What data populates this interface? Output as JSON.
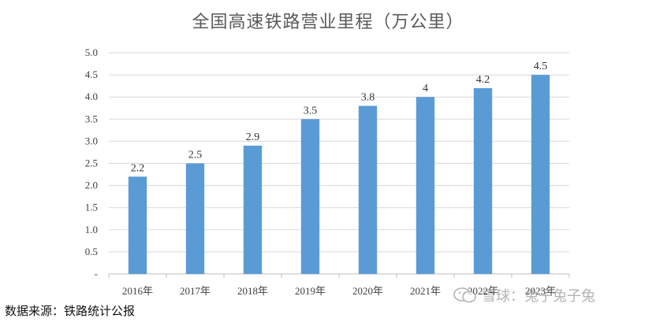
{
  "colors": {
    "bar": "#5b9bd5",
    "grid": "#d9d9d9",
    "axis": "#bfbfbf"
  },
  "icons": {
    "watermark": "wechat-icon"
  },
  "source_note": "数据来源：铁路统计公报",
  "watermark_text": "雪球：兔子兔子兔",
  "chart_data": {
    "type": "bar",
    "title": "全国高速铁路营业里程（万公里）",
    "categories": [
      "2016年",
      "2017年",
      "2018年",
      "2019年",
      "2020年",
      "2021年",
      "2022年",
      "2023年"
    ],
    "values": [
      2.2,
      2.5,
      2.9,
      3.5,
      3.8,
      4,
      4.2,
      4.5
    ],
    "value_labels": [
      "2.2",
      "2.5",
      "2.9",
      "3.5",
      "3.8",
      "4",
      "4.2",
      "4.5"
    ],
    "y_tick_labels": [
      "-",
      "0.5",
      "1.0",
      "1.5",
      "2.0",
      "2.5",
      "3.0",
      "3.5",
      "4.0",
      "4.5",
      "5.0"
    ],
    "ylim": [
      0,
      5
    ],
    "ytick_step": 0.5,
    "grid": true,
    "xlabel": "",
    "ylabel": ""
  }
}
